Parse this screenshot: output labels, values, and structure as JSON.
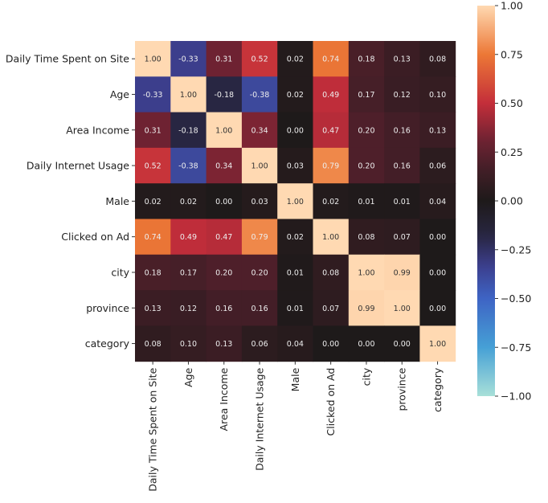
{
  "chart_data": {
    "type": "heatmap",
    "title": "",
    "labels": [
      "Daily Time Spent on Site",
      "Age",
      "Area Income",
      "Daily Internet Usage",
      "Male",
      "Clicked on Ad",
      "city",
      "province",
      "category"
    ],
    "values": [
      [
        1.0,
        -0.33,
        0.31,
        0.52,
        0.02,
        0.74,
        0.18,
        0.13,
        0.08
      ],
      [
        -0.33,
        1.0,
        -0.18,
        -0.38,
        0.02,
        0.49,
        0.17,
        0.12,
        0.1
      ],
      [
        0.31,
        -0.18,
        1.0,
        0.34,
        0.0,
        0.47,
        0.2,
        0.16,
        0.13
      ],
      [
        0.52,
        -0.38,
        0.34,
        1.0,
        0.03,
        0.79,
        0.2,
        0.16,
        0.06
      ],
      [
        0.02,
        0.02,
        0.0,
        0.03,
        1.0,
        0.02,
        0.01,
        0.01,
        0.04
      ],
      [
        0.74,
        0.49,
        0.47,
        0.79,
        0.02,
        1.0,
        0.08,
        0.07,
        0.0
      ],
      [
        0.18,
        0.17,
        0.2,
        0.2,
        0.01,
        0.08,
        1.0,
        0.99,
        0.0
      ],
      [
        0.13,
        0.12,
        0.16,
        0.16,
        0.01,
        0.07,
        0.99,
        1.0,
        0.0
      ],
      [
        0.08,
        0.1,
        0.13,
        0.06,
        0.04,
        0.0,
        0.0,
        0.0,
        1.0
      ]
    ],
    "vmin": -1.0,
    "vmax": 1.0,
    "colormap": "icefire",
    "colorbar_ticks": [
      "1.00",
      "0.75",
      "0.50",
      "0.25",
      "0.00",
      "−0.25",
      "−0.50",
      "−0.75",
      "−1.00"
    ],
    "annotations": true,
    "legend": "colorbar-right"
  }
}
